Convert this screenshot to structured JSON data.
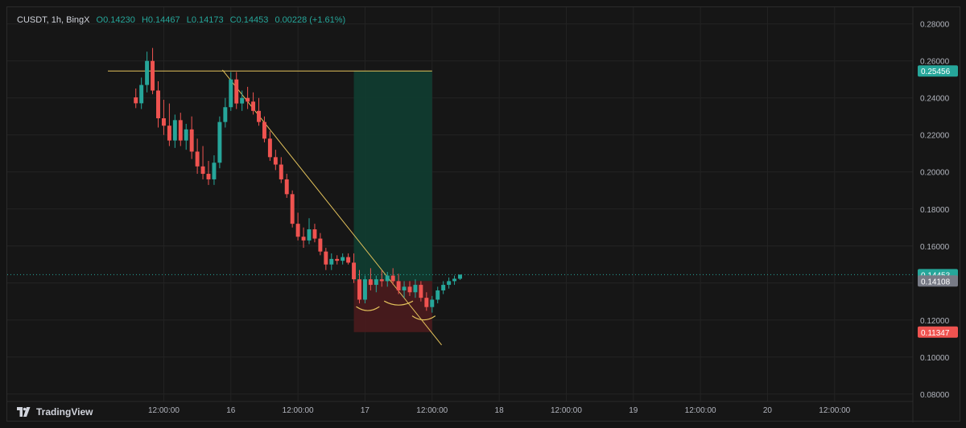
{
  "header": {
    "symbol": "CUSDT, 1h, BingX",
    "open": "O0.14230",
    "high": "H0.14467",
    "low": "L0.14173",
    "close": "C0.14453",
    "change": "0.00228 (+1.61%)"
  },
  "footer": {
    "brand": "TradingView"
  },
  "colors": {
    "up": "#26a69a",
    "down": "#ef5350",
    "bg": "#161616",
    "grid": "#232323",
    "axis_text": "#b2b5be",
    "trendline": "#e3c25b",
    "target_zone": "#0f3d31",
    "stop_zone": "#4a1b1d"
  },
  "chart_data": {
    "type": "candlestick",
    "y_axis": {
      "ticks": [
        "0.28000",
        "0.26000",
        "0.24000",
        "0.22000",
        "0.20000",
        "0.18000",
        "0.16000",
        "0.14000",
        "0.12000",
        "0.10000",
        "0.08000"
      ],
      "range": [
        0.076,
        0.289
      ]
    },
    "x_axis": {
      "tick_labels": [
        "12:00:00",
        "16",
        "12:00:00",
        "17",
        "12:00:00",
        "18",
        "12:00:00",
        "19",
        "12:00:00",
        "20",
        "12:00:00"
      ],
      "tick_positions_hours": [
        12,
        24,
        36,
        48,
        60,
        72,
        84,
        96,
        108,
        120,
        132
      ],
      "range_hours": [
        -16,
        146
      ]
    },
    "price_labels": [
      {
        "value": 0.25456,
        "text": "0.25456",
        "color": "#26a69a"
      },
      {
        "value": 0.14453,
        "text": "0.14453",
        "color": "#26a69a"
      },
      {
        "value": 0.14108,
        "text": "0.14108",
        "color": "#787b86"
      },
      {
        "value": 0.11347,
        "text": "0.11347",
        "color": "#ef5350"
      }
    ],
    "current_price": 0.14453,
    "position": {
      "entry": 0.14108,
      "target": 0.25456,
      "stop": 0.11347,
      "start_hour": 46,
      "end_hour": 60
    },
    "resistance_line": {
      "price": 0.25456,
      "from_hour": 2,
      "to_hour": 60
    },
    "trendline": {
      "from": [
        22.5,
        0.2551
      ],
      "to": [
        61.7,
        0.1065
      ]
    },
    "candles": [
      [
        7,
        0.2403,
        0.2451,
        0.2345,
        0.2371
      ],
      [
        8,
        0.2371,
        0.251,
        0.234,
        0.247
      ],
      [
        9,
        0.247,
        0.265,
        0.243,
        0.26
      ],
      [
        10,
        0.26,
        0.267,
        0.242,
        0.244
      ],
      [
        11,
        0.244,
        0.249,
        0.224,
        0.229
      ],
      [
        12,
        0.229,
        0.239,
        0.22,
        0.225
      ],
      [
        13,
        0.225,
        0.237,
        0.214,
        0.217
      ],
      [
        14,
        0.217,
        0.231,
        0.213,
        0.228
      ],
      [
        15,
        0.228,
        0.232,
        0.214,
        0.217
      ],
      [
        16,
        0.217,
        0.226,
        0.212,
        0.223
      ],
      [
        17,
        0.223,
        0.23,
        0.207,
        0.211
      ],
      [
        18,
        0.211,
        0.218,
        0.199,
        0.203
      ],
      [
        19,
        0.203,
        0.214,
        0.196,
        0.199
      ],
      [
        20,
        0.199,
        0.206,
        0.193,
        0.196
      ],
      [
        21,
        0.196,
        0.209,
        0.193,
        0.205
      ],
      [
        22,
        0.205,
        0.23,
        0.202,
        0.227
      ],
      [
        23,
        0.227,
        0.24,
        0.224,
        0.235
      ],
      [
        24,
        0.235,
        0.254,
        0.233,
        0.25
      ],
      [
        25,
        0.25,
        0.254,
        0.234,
        0.237
      ],
      [
        26,
        0.237,
        0.244,
        0.233,
        0.24
      ],
      [
        27,
        0.24,
        0.246,
        0.234,
        0.238
      ],
      [
        28,
        0.238,
        0.243,
        0.231,
        0.233
      ],
      [
        29,
        0.233,
        0.24,
        0.225,
        0.227
      ],
      [
        30,
        0.227,
        0.23,
        0.216,
        0.218
      ],
      [
        31,
        0.218,
        0.222,
        0.206,
        0.208
      ],
      [
        32,
        0.208,
        0.212,
        0.201,
        0.204
      ],
      [
        33,
        0.204,
        0.208,
        0.194,
        0.196
      ],
      [
        34,
        0.196,
        0.199,
        0.186,
        0.188
      ],
      [
        35,
        0.188,
        0.19,
        0.17,
        0.172
      ],
      [
        36,
        0.172,
        0.178,
        0.163,
        0.165
      ],
      [
        37,
        0.165,
        0.17,
        0.159,
        0.163
      ],
      [
        38,
        0.163,
        0.175,
        0.161,
        0.169
      ],
      [
        39,
        0.169,
        0.172,
        0.162,
        0.164
      ],
      [
        40,
        0.164,
        0.167,
        0.155,
        0.157
      ],
      [
        41,
        0.157,
        0.159,
        0.147,
        0.15
      ],
      [
        42,
        0.15,
        0.156,
        0.147,
        0.153
      ],
      [
        43,
        0.153,
        0.155,
        0.15,
        0.152
      ],
      [
        44,
        0.152,
        0.156,
        0.15,
        0.154
      ],
      [
        45,
        0.154,
        0.156,
        0.15,
        0.151
      ],
      [
        46,
        0.151,
        0.156,
        0.14,
        0.142
      ],
      [
        47,
        0.142,
        0.147,
        0.129,
        0.131
      ],
      [
        48,
        0.131,
        0.144,
        0.129,
        0.142
      ],
      [
        49,
        0.142,
        0.148,
        0.136,
        0.139
      ],
      [
        50,
        0.139,
        0.144,
        0.135,
        0.142
      ],
      [
        51,
        0.142,
        0.147,
        0.138,
        0.141
      ],
      [
        52,
        0.141,
        0.146,
        0.138,
        0.144
      ],
      [
        53,
        0.144,
        0.148,
        0.139,
        0.141
      ],
      [
        54,
        0.141,
        0.145,
        0.134,
        0.136
      ],
      [
        55,
        0.136,
        0.141,
        0.132,
        0.138
      ],
      [
        56,
        0.138,
        0.141,
        0.133,
        0.135
      ],
      [
        57,
        0.135,
        0.142,
        0.132,
        0.139
      ],
      [
        58,
        0.139,
        0.141,
        0.13,
        0.132
      ],
      [
        59,
        0.132,
        0.135,
        0.125,
        0.127
      ],
      [
        60,
        0.127,
        0.133,
        0.124,
        0.131
      ],
      [
        61,
        0.131,
        0.138,
        0.129,
        0.136
      ],
      [
        62,
        0.136,
        0.141,
        0.134,
        0.139
      ],
      [
        63,
        0.139,
        0.143,
        0.137,
        0.141
      ],
      [
        64,
        0.141,
        0.144,
        0.139,
        0.1423
      ],
      [
        65,
        0.1423,
        0.1447,
        0.1417,
        0.1445
      ]
    ],
    "pattern_marks": [
      [
        47,
        50
      ],
      [
        52,
        56
      ],
      [
        57,
        60
      ]
    ]
  }
}
